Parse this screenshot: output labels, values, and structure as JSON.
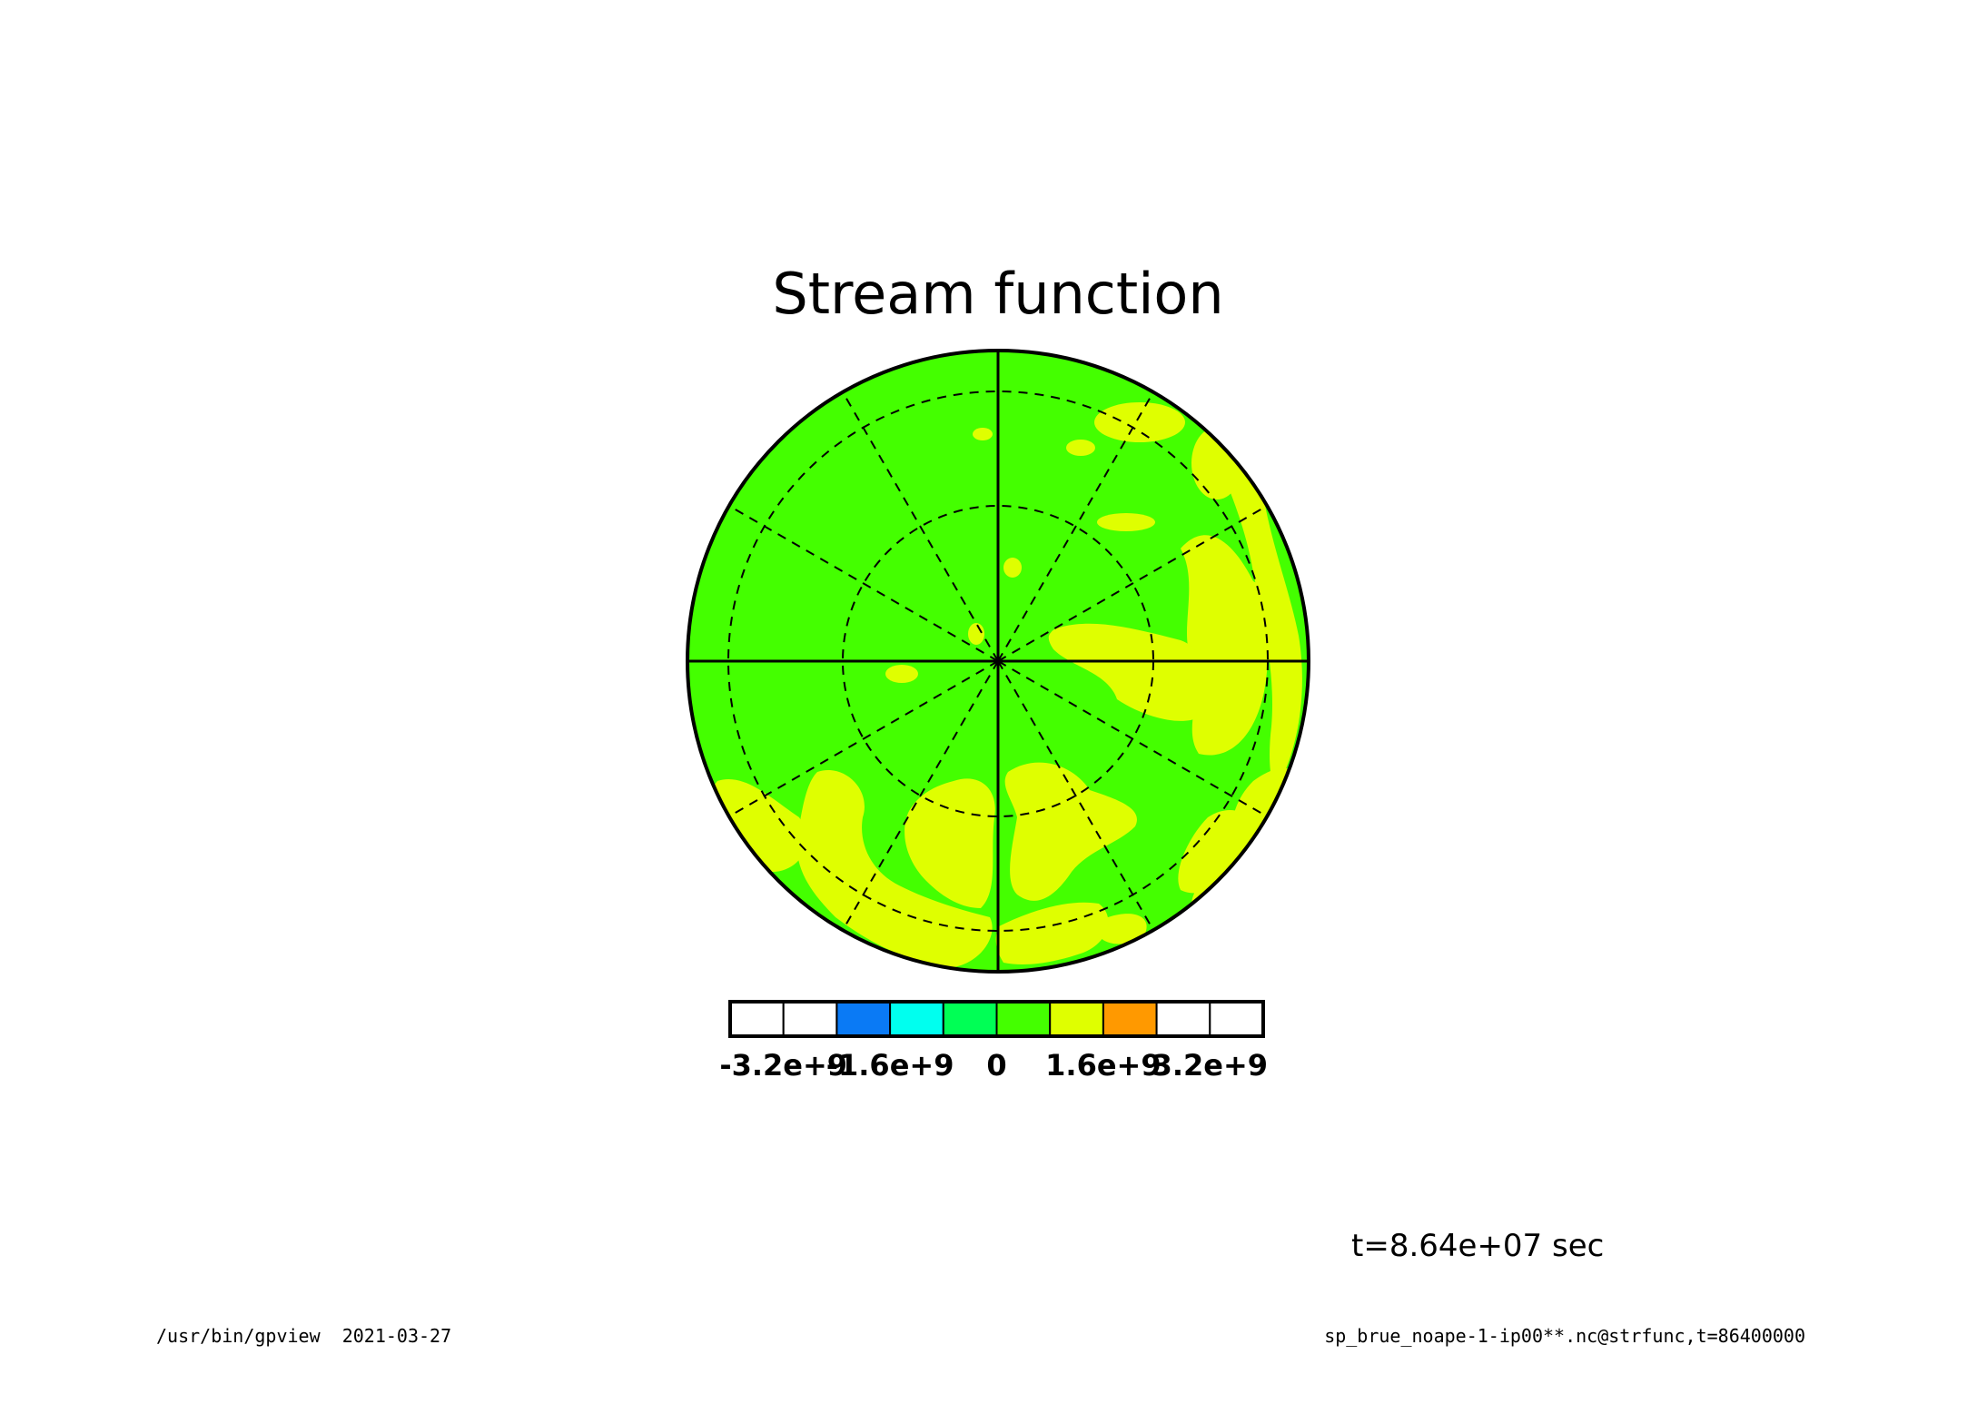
{
  "chart_data": {
    "type": "heatmap",
    "projection": "polar-stereographic",
    "title": "Stream function",
    "legend_placement": "bottom",
    "colorbar": {
      "colors": [
        "#ffffff",
        "#ffffff",
        "#0a7af5",
        "#00ffef",
        "#00ff55",
        "#44ff00",
        "#dfff00",
        "#ff9900",
        "#ffffff",
        "#ffffff"
      ],
      "tick_labels": [
        "-3.2e+9",
        "-1.6e+9",
        "0",
        "1.6e+9",
        "3.2e+9"
      ]
    },
    "field_colors": {
      "background": "#44ff00",
      "high": "#dfff00"
    },
    "grid": {
      "meridian_step_deg": 30,
      "circle_colatitudes_deg": [
        30,
        60
      ]
    },
    "time_label": "t=8.64e+07 sec",
    "footer": {
      "left": "/usr/bin/gpview  2021-03-27",
      "right": "sp_brue_noape-1-ip00**.nc@strfunc,t=86400000"
    }
  }
}
